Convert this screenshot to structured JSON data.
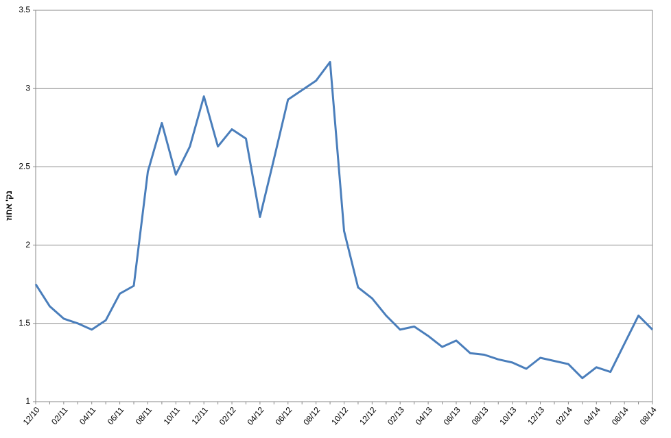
{
  "chart_data": {
    "type": "line",
    "y_label": "נק' אחוז",
    "categories": [
      "12/10",
      null,
      "02/11",
      null,
      "04/11",
      null,
      "06/11",
      null,
      "08/11",
      null,
      "10/11",
      null,
      "12/11",
      null,
      "02/12",
      null,
      "04/12",
      null,
      "06/12",
      null,
      "08/12",
      null,
      "10/12",
      null,
      "12/12",
      null,
      "02/13",
      null,
      "04/13",
      null,
      "06/13",
      null,
      "08/13",
      null,
      "10/13",
      null,
      "12/13",
      null,
      "02/14",
      null,
      "04/14",
      null,
      "06/14",
      null,
      "08/14"
    ],
    "values": [
      1.75,
      1.61,
      1.53,
      1.5,
      1.46,
      1.52,
      1.69,
      1.74,
      2.47,
      2.78,
      2.45,
      2.63,
      2.95,
      2.63,
      2.74,
      2.68,
      2.18,
      2.55,
      2.93,
      2.99,
      3.05,
      3.17,
      2.09,
      1.73,
      1.66,
      1.55,
      1.46,
      1.48,
      1.42,
      1.35,
      1.39,
      1.31,
      1.3,
      1.27,
      1.25,
      1.21,
      1.28,
      1.26,
      1.24,
      1.15,
      1.22,
      1.19,
      1.37,
      1.55,
      1.46
    ],
    "color": "#4a7ebb",
    "ylim": [
      1,
      3.5
    ],
    "yticks": [
      1,
      1.5,
      2,
      2.5,
      3,
      3.5
    ],
    "grid": true
  }
}
